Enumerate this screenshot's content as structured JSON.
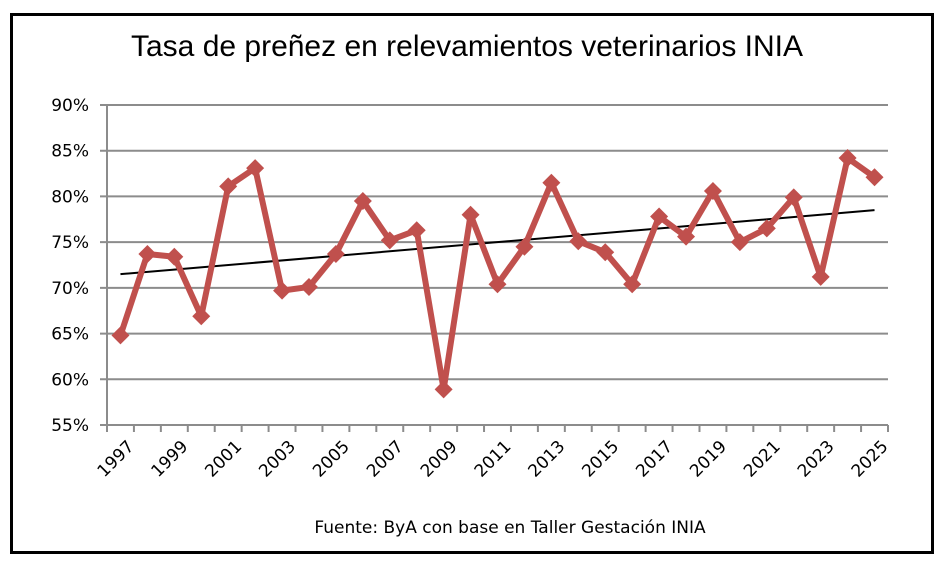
{
  "chart_data": {
    "type": "line",
    "title": "Tasa de preñez en relevamientos veterinarios INIA",
    "source": "Fuente: ByA con base en Taller Gestación INIA",
    "xlabel": "",
    "ylabel": "",
    "ylim": [
      55,
      90
    ],
    "yticks": [
      55,
      60,
      65,
      70,
      75,
      80,
      85,
      90
    ],
    "ytick_labels": [
      "55%",
      "60%",
      "65%",
      "70%",
      "75%",
      "80%",
      "85%",
      "90%"
    ],
    "grid": true,
    "categories": [
      "1997",
      "1998",
      "1999",
      "2000",
      "2001",
      "2002",
      "2003",
      "2004",
      "2005",
      "2006",
      "2007",
      "2008",
      "2009",
      "2010",
      "2011",
      "2012",
      "2013",
      "2014",
      "2015",
      "2016",
      "2017",
      "2018",
      "2019",
      "2020",
      "2021",
      "2022",
      "2023",
      "2024",
      "2025"
    ],
    "xtick_labels": [
      "1997",
      "1999",
      "2001",
      "2003",
      "2005",
      "2007",
      "2009",
      "2011",
      "2013",
      "2015",
      "2017",
      "2019",
      "2021",
      "2023",
      "2025"
    ],
    "series": [
      {
        "name": "Tasa de preñez",
        "color": "#C0504D",
        "marker": "diamond",
        "values": [
          64.8,
          73.7,
          73.4,
          66.9,
          81.1,
          83.1,
          69.7,
          70.1,
          73.7,
          79.5,
          75.2,
          76.3,
          58.9,
          78.0,
          70.4,
          74.5,
          81.5,
          75.1,
          73.9,
          70.4,
          77.8,
          75.6,
          80.6,
          75.0,
          76.5,
          79.9,
          71.2,
          84.2,
          82.1
        ]
      }
    ],
    "trendline": {
      "type": "linear",
      "color": "#000000",
      "start": 71.5,
      "end": 78.5
    }
  }
}
